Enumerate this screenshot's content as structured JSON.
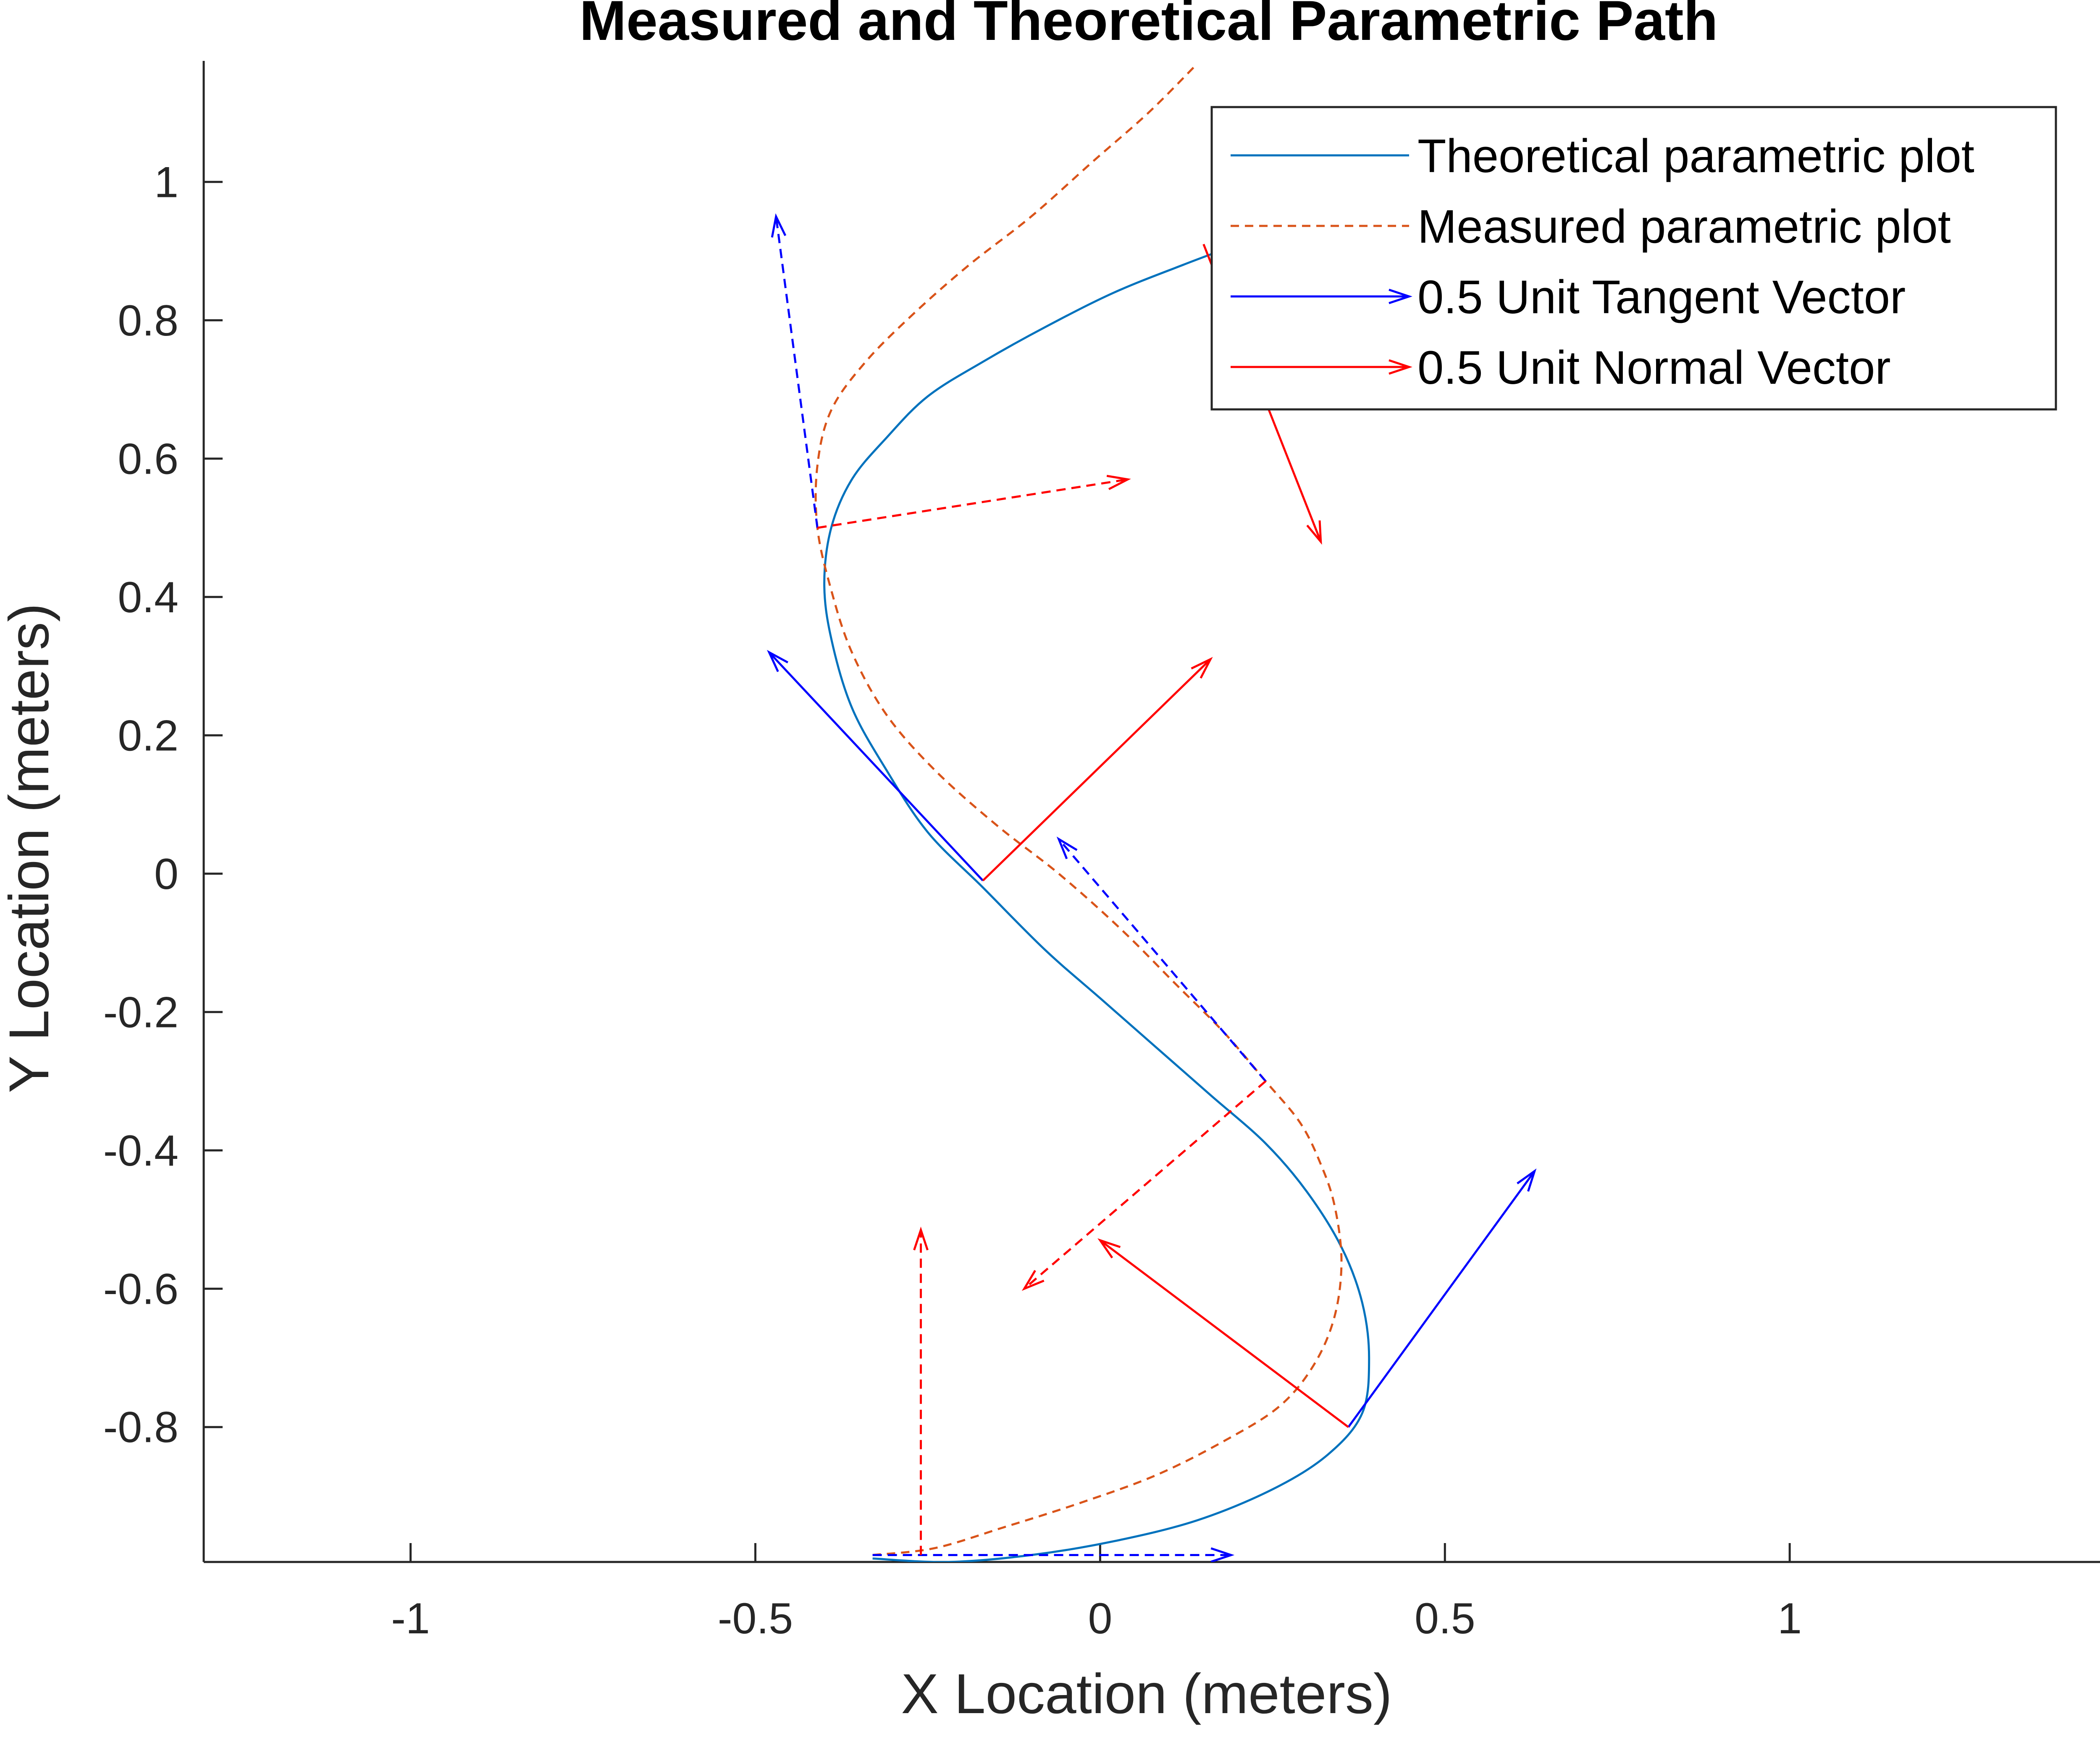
{
  "chart_data": {
    "type": "line",
    "title": "Measured and Theoretical Parametric Path",
    "xlabel": "X Location (meters)",
    "ylabel": "Y Location (meters)",
    "xlim": [
      -1.3,
      1.45
    ],
    "ylim": [
      -0.995,
      1.175
    ],
    "xticks": [
      -1,
      -0.5,
      0,
      0.5,
      1
    ],
    "xtick_labels": [
      "-1",
      "-0.5",
      "0",
      "0.5",
      "1"
    ],
    "yticks": [
      -0.8,
      -0.6,
      -0.4,
      -0.2,
      0,
      0.2,
      0.4,
      0.6,
      0.8,
      1
    ],
    "ytick_labels": [
      "-0.8",
      "-0.6",
      "-0.4",
      "-0.2",
      "0",
      "0.2",
      "0.4",
      "0.6",
      "0.8",
      "1"
    ],
    "grid": false,
    "legend_position": "top-right",
    "colors": {
      "theoretical": "#0072BD",
      "measured": "#D95319",
      "tangent": "#0000FF",
      "normal": "#FF0000",
      "axis": "#262626"
    },
    "series": [
      {
        "name": "Theoretical parametric plot",
        "style": "solid",
        "x": [
          -0.33,
          -0.22,
          -0.1,
          0.02,
          0.14,
          0.25,
          0.33,
          0.38,
          0.39,
          0.38,
          0.35,
          0.3,
          0.24,
          0.16,
          0.08,
          0.0,
          -0.08,
          -0.17,
          -0.25,
          -0.31,
          -0.36,
          -0.39,
          -0.4,
          -0.39,
          -0.36,
          -0.31,
          -0.25,
          -0.17,
          -0.08,
          0.02,
          0.12,
          0.2
        ],
        "y": [
          -0.99,
          -0.995,
          -0.985,
          -0.965,
          -0.935,
          -0.89,
          -0.84,
          -0.78,
          -0.7,
          -0.62,
          -0.54,
          -0.46,
          -0.39,
          -0.32,
          -0.25,
          -0.18,
          -0.11,
          -0.02,
          0.06,
          0.15,
          0.24,
          0.34,
          0.42,
          0.5,
          0.57,
          0.63,
          0.69,
          0.74,
          0.79,
          0.84,
          0.88,
          0.91
        ]
      },
      {
        "name": "Measured parametric plot",
        "style": "dashed",
        "x": [
          -0.33,
          -0.24,
          -0.14,
          -0.03,
          0.08,
          0.18,
          0.26,
          0.31,
          0.34,
          0.35,
          0.34,
          0.32,
          0.29,
          0.24,
          0.18,
          0.11,
          0.03,
          -0.06,
          -0.15,
          -0.24,
          -0.31,
          -0.36,
          -0.39,
          -0.41,
          -0.41,
          -0.39,
          -0.34,
          -0.27,
          -0.19,
          -0.1,
          -0.01,
          0.07,
          0.14
        ],
        "y": [
          -0.985,
          -0.975,
          -0.945,
          -0.91,
          -0.87,
          -0.82,
          -0.77,
          -0.71,
          -0.64,
          -0.56,
          -0.48,
          -0.42,
          -0.36,
          -0.3,
          -0.23,
          -0.16,
          -0.08,
          0.0,
          0.07,
          0.15,
          0.23,
          0.32,
          0.41,
          0.5,
          0.59,
          0.67,
          0.74,
          0.81,
          0.88,
          0.95,
          1.03,
          1.1,
          1.17
        ]
      },
      {
        "name": "0.5 Unit Tangent Vector",
        "style": "solid",
        "arrows": [
          {
            "x": -0.17,
            "y": -0.01,
            "u": -0.31,
            "v": 0.33
          },
          {
            "x": 0.36,
            "y": -0.8,
            "u": 0.27,
            "v": 0.37
          },
          {
            "x": 0.15,
            "y": 0.91,
            "u": 0.0,
            "v": 0.0
          }
        ]
      },
      {
        "name": "0.5 Unit Normal Vector",
        "style": "solid",
        "arrows": [
          {
            "x": -0.17,
            "y": -0.01,
            "u": 0.33,
            "v": 0.32
          },
          {
            "x": 0.36,
            "y": -0.8,
            "u": -0.36,
            "v": 0.27
          },
          {
            "x": 0.15,
            "y": 0.91,
            "u": 0.17,
            "v": -0.43
          }
        ]
      },
      {
        "style": "dashed",
        "color": "tangent",
        "arrows": [
          {
            "x": -0.41,
            "y": 0.5,
            "u": -0.06,
            "v": 0.45
          },
          {
            "x": 0.24,
            "y": -0.3,
            "u": -0.3,
            "v": 0.35
          },
          {
            "x": -0.33,
            "y": -0.985,
            "u": 0.52,
            "v": 0.0
          }
        ]
      },
      {
        "style": "dashed",
        "color": "normal",
        "arrows": [
          {
            "x": -0.41,
            "y": 0.5,
            "u": 0.45,
            "v": 0.07
          },
          {
            "x": 0.24,
            "y": -0.3,
            "u": -0.35,
            "v": -0.3
          },
          {
            "x": -0.26,
            "y": -0.985,
            "u": 0.0,
            "v": 0.47
          }
        ]
      }
    ],
    "legend": [
      {
        "label": "Theoretical parametric plot",
        "color": "theoretical",
        "marker": "line-dashless"
      },
      {
        "label": "Measured parametric plot",
        "color": "measured",
        "marker": "line-dashed"
      },
      {
        "label": "0.5 Unit Tangent Vector",
        "color": "tangent",
        "marker": "arrow"
      },
      {
        "label": "0.5 Unit Normal Vector",
        "color": "normal",
        "marker": "arrow"
      }
    ]
  }
}
